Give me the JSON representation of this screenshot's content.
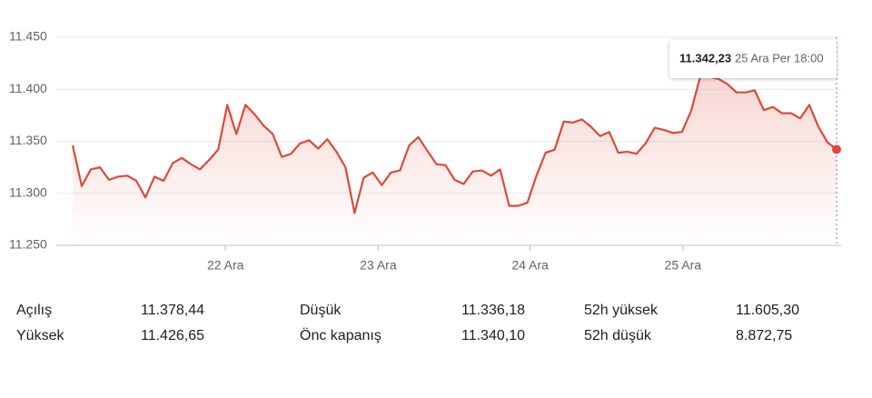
{
  "chart_data": {
    "type": "line",
    "color": "#dc4a38",
    "x": [
      0,
      1,
      2,
      3,
      4,
      5,
      6,
      7,
      8,
      9,
      10,
      11,
      12,
      13,
      14,
      15,
      16,
      17,
      18,
      19,
      20,
      21,
      22,
      23,
      24,
      25,
      26,
      27,
      28,
      29,
      30,
      31,
      32,
      33,
      34,
      35,
      36,
      37,
      38,
      39,
      40,
      41,
      42,
      43,
      44,
      45,
      46,
      47,
      48,
      49,
      50,
      51,
      52,
      53,
      54,
      55,
      56,
      57,
      58,
      59,
      60,
      61,
      62,
      63,
      64,
      65,
      66,
      67,
      68,
      69,
      70,
      71,
      72,
      73,
      74,
      75,
      76,
      77,
      78,
      79,
      80,
      81,
      82,
      83,
      84
    ],
    "values": [
      11346,
      11307,
      11323,
      11325,
      11313,
      11316,
      11317,
      11312,
      11296,
      11316,
      11312,
      11329,
      11334,
      11328,
      11323,
      11332,
      11342,
      11385,
      11357,
      11385,
      11376,
      11365,
      11357,
      11335,
      11338,
      11348,
      11351,
      11343,
      11352,
      11340,
      11325,
      11281,
      11315,
      11320,
      11308,
      11320,
      11322,
      11346,
      11354,
      11341,
      11328,
      11327,
      11313,
      11309,
      11321,
      11322,
      11317,
      11323,
      11288,
      11288,
      11291,
      11317,
      11339,
      11342,
      11369,
      11368,
      11371,
      11364,
      11355,
      11359,
      11339,
      11340,
      11338,
      11348,
      11363,
      11361,
      11358,
      11359,
      11379,
      11412,
      11412,
      11410,
      11405,
      11397,
      11397,
      11399,
      11380,
      11383,
      11377,
      11377,
      11372,
      11385,
      11364,
      11349,
      11342.23
    ],
    "xlim": [
      0,
      84
    ],
    "xticks": [
      {
        "value": 16.8,
        "label": "22 Ara"
      },
      {
        "value": 33.6,
        "label": "23 Ara"
      },
      {
        "value": 50.3,
        "label": "24 Ara"
      },
      {
        "value": 67.1,
        "label": "25 Ara"
      }
    ],
    "ylim": [
      11250,
      11450
    ],
    "yticks": [
      {
        "value": 11250,
        "label": "11.250"
      },
      {
        "value": 11300,
        "label": "11.300"
      },
      {
        "value": 11350,
        "label": "11.350"
      },
      {
        "value": 11400,
        "label": "11.400"
      },
      {
        "value": 11450,
        "label": "11.450"
      }
    ],
    "grid": true,
    "tooltip": {
      "value": "11.342,23",
      "date": "25 Ara Per 18:00"
    }
  },
  "stats": [
    {
      "label": "Açılış",
      "value": "11.378,44"
    },
    {
      "label": "Düşük",
      "value": "11.336,18"
    },
    {
      "label": "52h yüksek",
      "value": "11.605,30"
    },
    {
      "label": "Yüksek",
      "value": "11.426,65"
    },
    {
      "label": "Önc kapanış",
      "value": "11.340,10"
    },
    {
      "label": "52h düşük",
      "value": "8.872,75"
    }
  ]
}
